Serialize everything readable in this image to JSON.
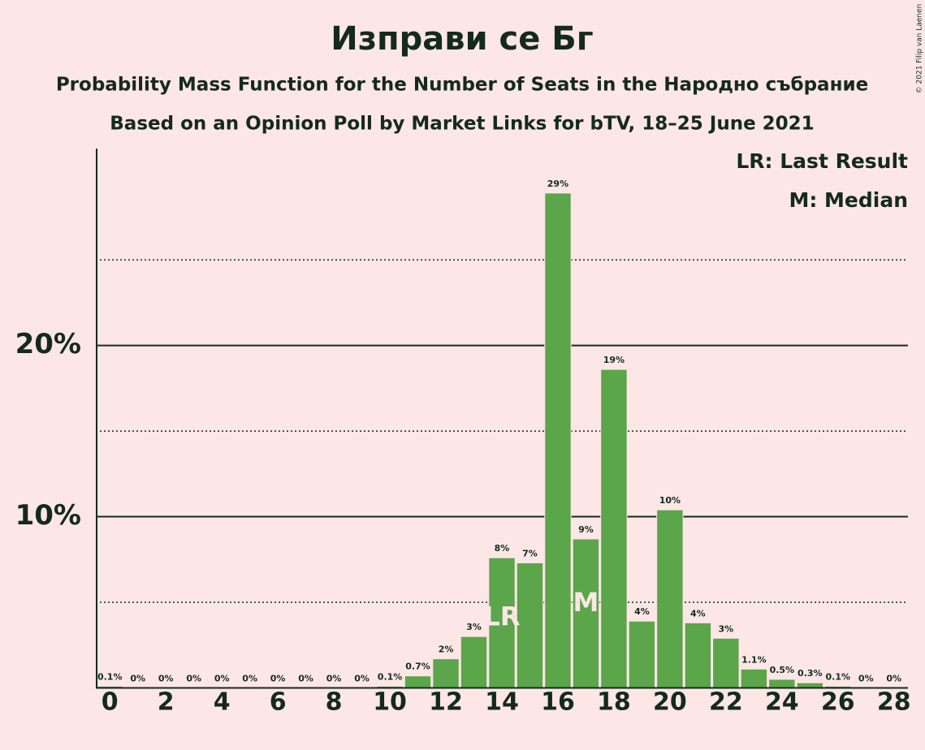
{
  "chart_data": {
    "type": "bar",
    "title": "Изправи се Бг",
    "subtitle": "Probability Mass Function for the Number of Seats in the Народно събрание",
    "subtitle2": "Based on an Opinion Poll by Market Links for bTV, 18–25 June 2021",
    "copyright": "© 2021 Filip van Laenen",
    "legend": [
      "LR: Last Result",
      "M: Median"
    ],
    "x": [
      0,
      1,
      2,
      3,
      4,
      5,
      6,
      7,
      8,
      9,
      10,
      11,
      12,
      13,
      14,
      15,
      16,
      17,
      18,
      19,
      20,
      21,
      22,
      23,
      24,
      25,
      26,
      27,
      28
    ],
    "values": [
      0.1,
      0,
      0,
      0,
      0,
      0,
      0,
      0,
      0,
      0,
      0.1,
      0.7,
      1.7,
      3.0,
      7.6,
      7.3,
      28.9,
      8.7,
      18.6,
      3.9,
      10.4,
      3.8,
      2.9,
      1.1,
      0.5,
      0.3,
      0.1,
      0,
      0
    ],
    "value_labels": [
      "0.1%",
      "0%",
      "0%",
      "0%",
      "0%",
      "0%",
      "0%",
      "0%",
      "0%",
      "0%",
      "0.1%",
      "0.7%",
      "2%",
      "3%",
      "8%",
      "7%",
      "29%",
      "9%",
      "19%",
      "4%",
      "10%",
      "4%",
      "3%",
      "1.1%",
      "0.5%",
      "0.3%",
      "0.1%",
      "0%",
      "0%"
    ],
    "color": "#5ba54a",
    "markers": [
      {
        "x": 14,
        "label": "LR"
      },
      {
        "x": 17,
        "label": "M"
      }
    ],
    "xlim": [
      -0.5,
      28.5
    ],
    "xticks": [
      0,
      2,
      4,
      6,
      8,
      10,
      12,
      14,
      16,
      18,
      20,
      22,
      24,
      26,
      28
    ],
    "ylim": [
      0,
      31.5
    ],
    "yticks": [
      {
        "value": 10,
        "label": "10%"
      },
      {
        "value": 20,
        "label": "20%"
      }
    ],
    "minor_yticks": [
      5,
      15,
      25
    ],
    "grid": true
  }
}
